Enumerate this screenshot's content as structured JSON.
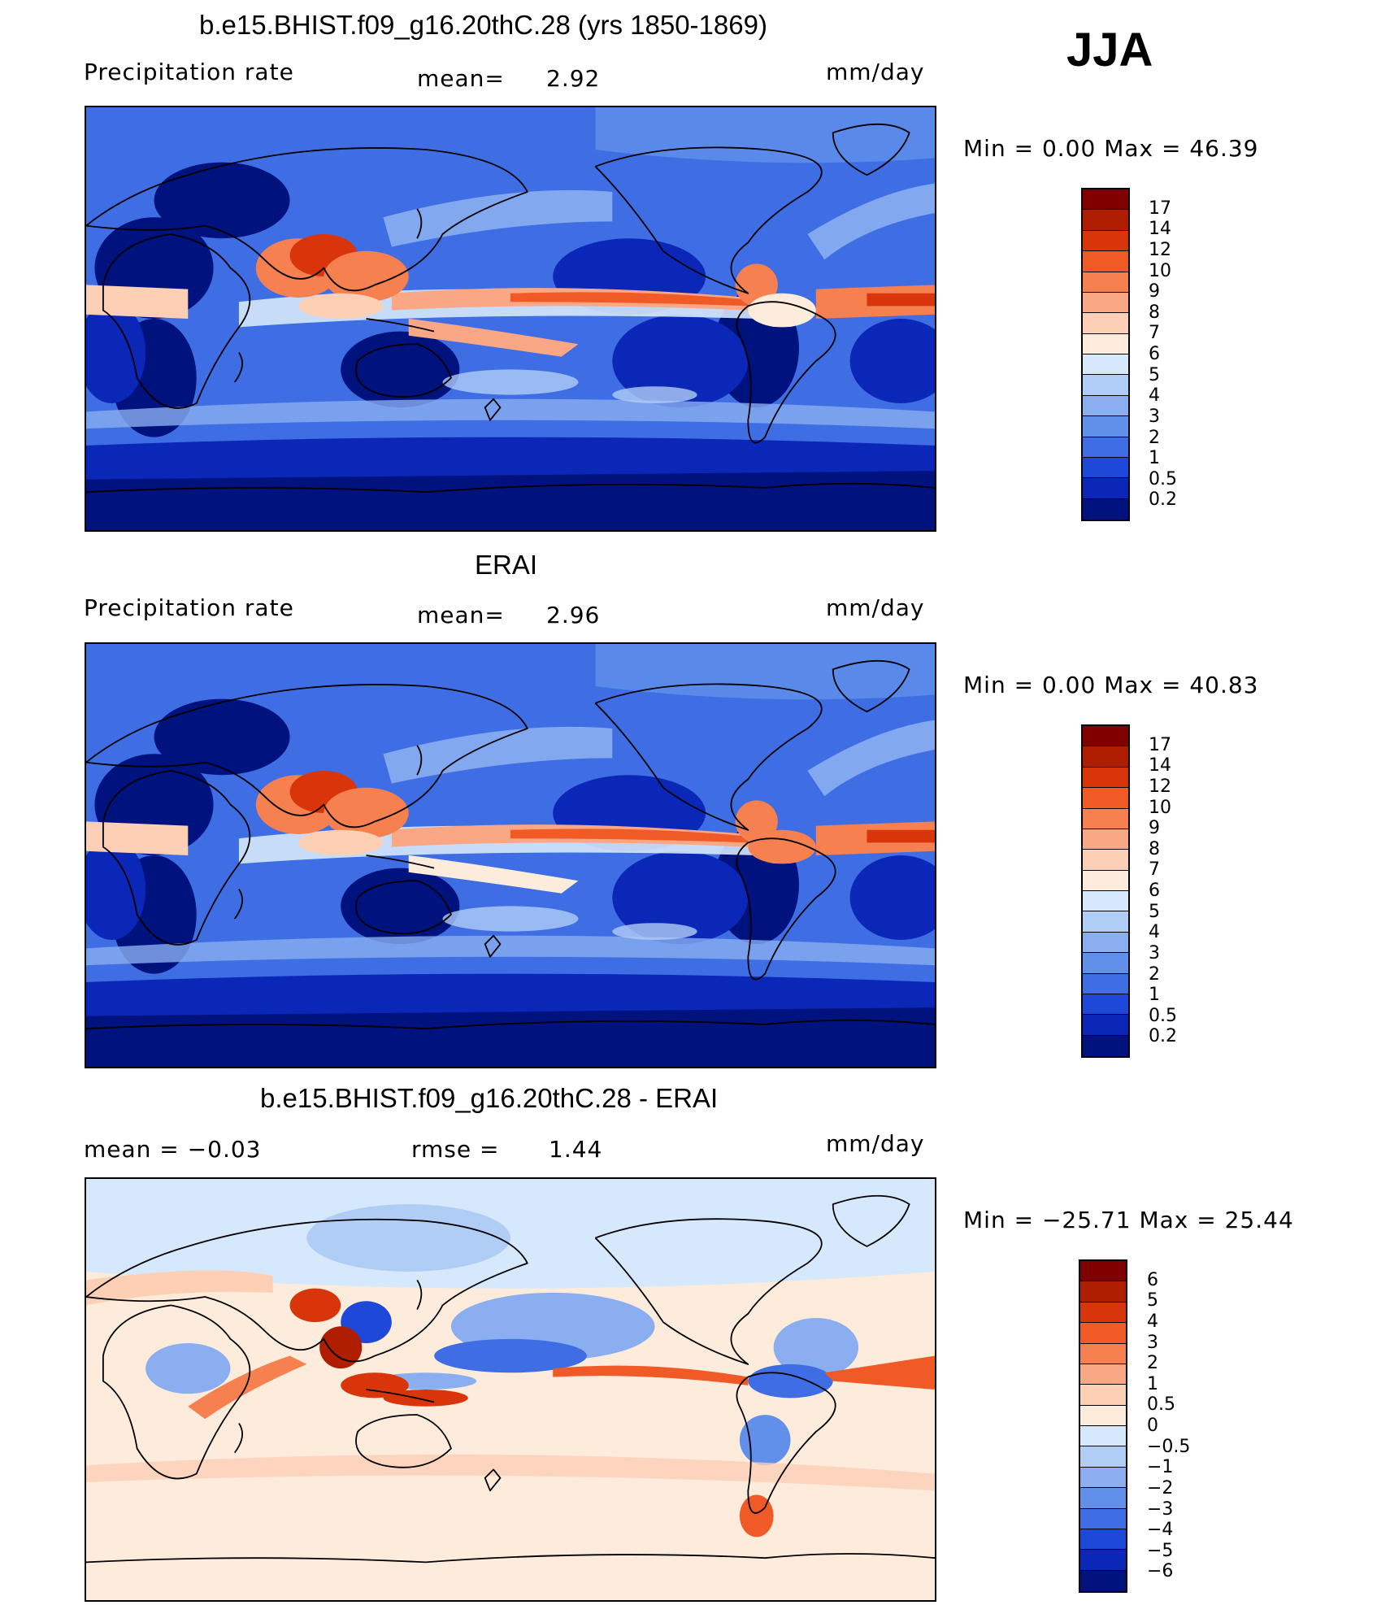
{
  "season": "JJA",
  "panels": [
    {
      "title": "b.e15.BHIST.f09_g16.20thC.28 (yrs 1850-1869)",
      "left_label": "Precipitation  rate",
      "mid_label": "mean=",
      "mid_value": "2.92",
      "units": "mm/day",
      "minmax": "Min  =     0.00  Max  =    46.39",
      "palette": "precip",
      "colorbar_labels": [
        "17",
        "14",
        "12",
        "10",
        "9",
        "8",
        "7",
        "6",
        "5",
        "4",
        "3",
        "2",
        "1",
        "0.5",
        "0.2"
      ]
    },
    {
      "title": "ERAI",
      "left_label": "Precipitation  rate",
      "mid_label": "mean=",
      "mid_value": "2.96",
      "units": "mm/day",
      "minmax": "Min  =     0.00  Max  =    40.83",
      "palette": "precip",
      "colorbar_labels": [
        "17",
        "14",
        "12",
        "10",
        "9",
        "8",
        "7",
        "6",
        "5",
        "4",
        "3",
        "2",
        "1",
        "0.5",
        "0.2"
      ]
    },
    {
      "title": "b.e15.BHIST.f09_g16.20thC.28 - ERAI",
      "left_label": "mean  =   −0.03",
      "mid_label": "rmse  =",
      "mid_value": "1.44",
      "units": "mm/day",
      "minmax": "Min  = −25.71  Max  =    25.44",
      "palette": "diff",
      "colorbar_labels": [
        "6",
        "5",
        "4",
        "3",
        "2",
        "1",
        "0.5",
        "0",
        "−0.5",
        "−1",
        "−2",
        "−3",
        "−4",
        "−5",
        "−6"
      ]
    }
  ],
  "colors": {
    "precip": [
      "#800000",
      "#b01e00",
      "#d8350a",
      "#ef5a26",
      "#f6804f",
      "#faa785",
      "#fdd0b6",
      "#fdebdc",
      "#d6e8fb",
      "#b0cdf6",
      "#8aaef0",
      "#6090ea",
      "#3f6ee4",
      "#1e48d8",
      "#0a27b7",
      "#00127e"
    ],
    "diff": [
      "#800000",
      "#b01e00",
      "#d8350a",
      "#ef5a26",
      "#f6804f",
      "#faa785",
      "#fdd0b6",
      "#fdebdc",
      "#d6e8fb",
      "#b0cdf6",
      "#8aaef0",
      "#6090ea",
      "#3f6ee4",
      "#1e48d8",
      "#0a27b7",
      "#00127e"
    ]
  }
}
